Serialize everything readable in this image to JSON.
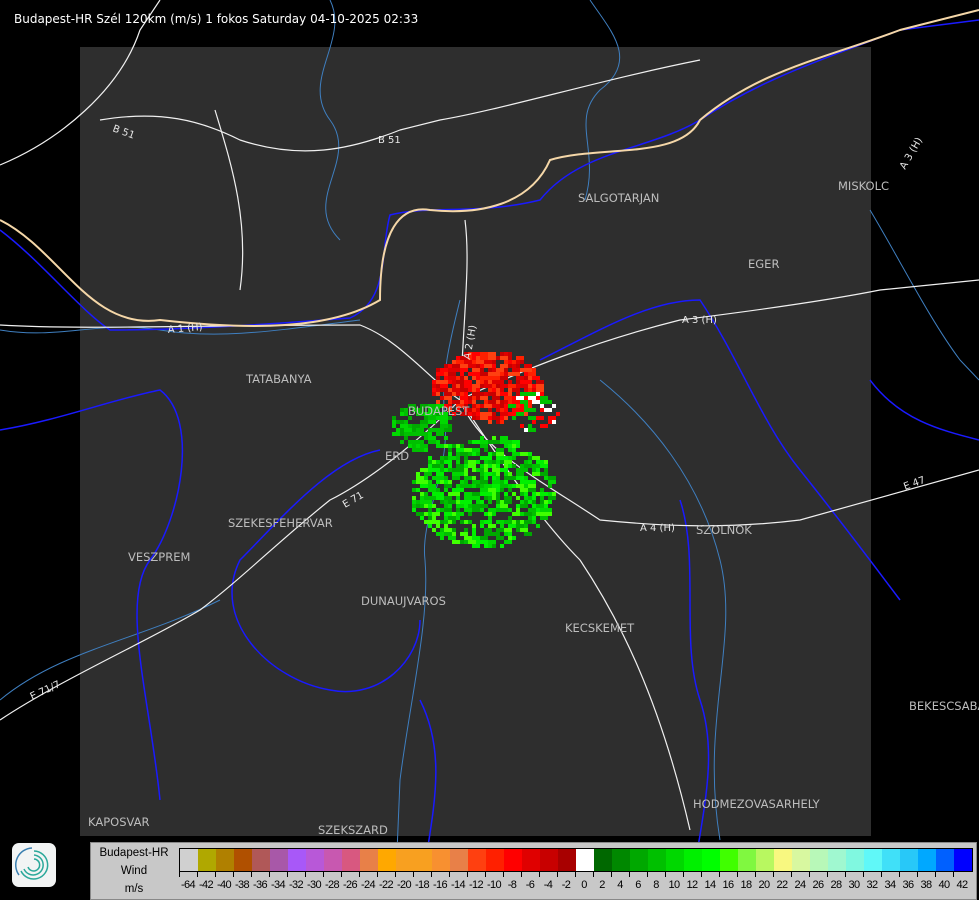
{
  "title": "Budapest-HR Szél 120km (m/s) 1 fokos Saturday 04-10-2025 02:33",
  "map": {
    "background_color": "#2e2e2e",
    "outside_color": "#000000",
    "cities": [
      {
        "name": "SALGOTARJAN"
      },
      {
        "name": "MISKOLC"
      },
      {
        "name": "EGER"
      },
      {
        "name": "TATABANYA"
      },
      {
        "name": "BUDAPEST"
      },
      {
        "name": "ERD"
      },
      {
        "name": "SZEKESFEHERVAR"
      },
      {
        "name": "VESZPREM"
      },
      {
        "name": "DUNAUJVAROS"
      },
      {
        "name": "KECSKEMET"
      },
      {
        "name": "SZOLNOK"
      },
      {
        "name": "BEKESCSABA"
      },
      {
        "name": "HODMEZOVASARHELY"
      },
      {
        "name": "KAPOSVAR"
      },
      {
        "name": "SZEKSZARD"
      }
    ],
    "roads": [
      {
        "name": "B 51"
      },
      {
        "name": "B 51"
      },
      {
        "name": "A 1 (H)"
      },
      {
        "name": "A 2 (H)"
      },
      {
        "name": "A 3 (H)"
      },
      {
        "name": "A 3 (H)"
      },
      {
        "name": "E 71"
      },
      {
        "name": "E 47"
      },
      {
        "name": "A 4 (H)"
      },
      {
        "name": "E 71/7"
      }
    ]
  },
  "legend": {
    "site": "Budapest-HR",
    "quantity": "Wind",
    "unit": "m/s",
    "colors": [
      "#d0d0d0",
      "#b0a800",
      "#b08000",
      "#b05000",
      "#b05858",
      "#a858a8",
      "#a858f8",
      "#b858d8",
      "#c858b0",
      "#d85880",
      "#e88048",
      "#ffa800",
      "#f8a020",
      "#f8a020",
      "#f89030",
      "#e88048",
      "#ff4010",
      "#ff2000",
      "#ff0000",
      "#e00000",
      "#c80000",
      "#a80000",
      "#ffffff",
      "#006800",
      "#008800",
      "#00a800",
      "#00c000",
      "#00d800",
      "#00f000",
      "#00ff00",
      "#40ff00",
      "#80f840",
      "#b8f860",
      "#f8f880",
      "#d8f8a0",
      "#b8f8b8",
      "#a0f8d0",
      "#80f8e0",
      "#60f8f8",
      "#40e0f8",
      "#28c8f8",
      "#00a8ff",
      "#0060ff",
      "#0000ff"
    ],
    "labels": [
      "-64",
      "-42",
      "-40",
      "-38",
      "-36",
      "-34",
      "-32",
      "-30",
      "-28",
      "-26",
      "-24",
      "-22",
      "-20",
      "-18",
      "-16",
      "-14",
      "-12",
      "-10",
      "-8",
      "-6",
      "-4",
      "-2",
      "0",
      "2",
      "4",
      "6",
      "8",
      "10",
      "12",
      "14",
      "16",
      "18",
      "20",
      "22",
      "24",
      "26",
      "28",
      "30",
      "32",
      "34",
      "36",
      "38",
      "40",
      "42"
    ]
  }
}
